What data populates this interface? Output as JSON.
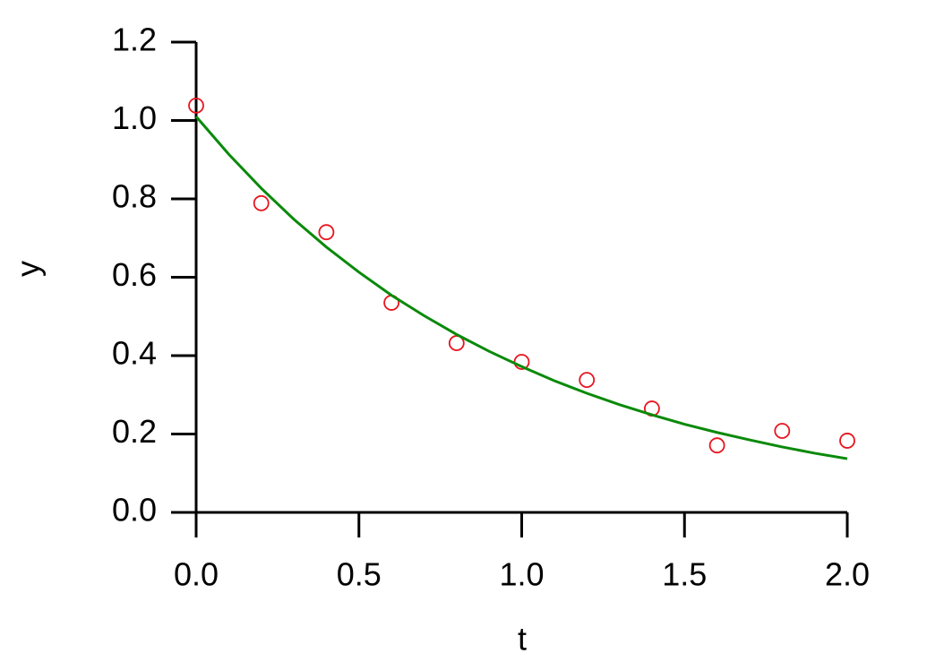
{
  "chart_data": {
    "type": "scatter",
    "x_label": "t",
    "y_label": "y",
    "xlim": [
      0,
      2
    ],
    "ylim": [
      0,
      1.2
    ],
    "xticks": [
      {
        "value": 0,
        "label": "0.0"
      },
      0.5,
      {
        "value": 1,
        "label": "1.0"
      },
      1.5,
      {
        "value": 2,
        "label": "2.0"
      }
    ],
    "yticks": [
      {
        "value": 0,
        "label": "0.0"
      },
      0.2,
      0.4,
      0.6,
      0.8,
      {
        "value": 1,
        "label": "1.0"
      },
      1.2
    ],
    "series": [
      {
        "type": "scatter",
        "color": "#e8141e",
        "x": [
          0,
          0.2,
          0.4,
          0.6,
          0.8,
          1.0,
          1.2,
          1.4,
          1.6,
          1.8,
          2.0
        ],
        "values": [
          1.038,
          0.789,
          0.715,
          0.535,
          0.432,
          0.384,
          0.338,
          0.265,
          0.171,
          0.208,
          0.183
        ]
      },
      {
        "type": "line",
        "color": "#0a8a0a",
        "x": [
          0,
          0.1,
          0.2,
          0.3,
          0.4,
          0.5,
          0.6,
          0.7,
          0.8,
          0.9,
          1.0,
          1.1,
          1.2,
          1.3,
          1.4,
          1.5,
          1.6,
          1.7,
          1.8,
          1.9,
          2.0
        ],
        "values": [
          1.01,
          0.914,
          0.827,
          0.748,
          0.677,
          0.613,
          0.554,
          0.502,
          0.454,
          0.411,
          0.372,
          0.336,
          0.304,
          0.275,
          0.249,
          0.225,
          0.204,
          0.185,
          0.167,
          0.151,
          0.137
        ]
      }
    ]
  }
}
